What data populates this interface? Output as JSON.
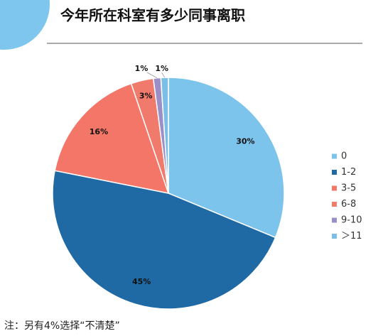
{
  "chart_data": {
    "type": "pie",
    "title": "今年所在科室有多少同事离职",
    "categories": [
      "0",
      "1-2",
      "3-5",
      "6-8",
      "9-10",
      "＞11"
    ],
    "values": [
      30,
      45,
      16,
      3,
      1,
      1
    ],
    "value_labels": [
      "30%",
      "45%",
      "16%",
      "3%",
      "1%",
      "1%"
    ],
    "colors": [
      "#7cc4ec",
      "#1f69a4",
      "#f47668",
      "#f07a6c",
      "#9a8fc6",
      "#7bbfe9"
    ],
    "legend": "right",
    "note": "注：另有4%选择“不清楚”"
  }
}
